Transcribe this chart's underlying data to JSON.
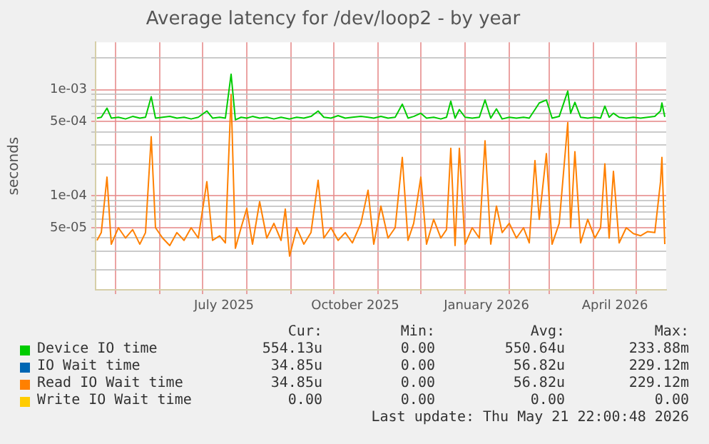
{
  "chart_data": {
    "type": "line",
    "title": "Average latency for /dev/loop2 - by year",
    "ylabel": "seconds",
    "log": "y",
    "grid": true,
    "legend": "bottom",
    "marker": "none",
    "x": [
      "2025-04-18",
      "2025-04-21",
      "2025-04-25",
      "2025-04-28",
      "2025-05-03",
      "2025-05-08",
      "2025-05-13",
      "2025-05-18",
      "2025-05-22",
      "2025-05-26",
      "2025-05-29",
      "2025-06-03",
      "2025-06-08",
      "2025-06-13",
      "2025-06-18",
      "2025-06-23",
      "2025-06-28",
      "2025-07-04",
      "2025-07-08",
      "2025-07-13",
      "2025-07-17",
      "2025-07-21",
      "2025-07-24",
      "2025-07-28",
      "2025-08-01",
      "2025-08-05",
      "2025-08-10",
      "2025-08-15",
      "2025-08-20",
      "2025-08-25",
      "2025-08-28",
      "2025-08-31",
      "2025-09-05",
      "2025-09-10",
      "2025-09-15",
      "2025-09-20",
      "2025-09-24",
      "2025-09-29",
      "2025-10-04",
      "2025-10-09",
      "2025-10-14",
      "2025-10-20",
      "2025-10-25",
      "2025-10-29",
      "2025-11-03",
      "2025-11-08",
      "2025-11-13",
      "2025-11-18",
      "2025-11-22",
      "2025-11-26",
      "2025-12-01",
      "2025-12-05",
      "2025-12-10",
      "2025-12-15",
      "2025-12-19",
      "2025-12-22",
      "2025-12-25",
      "2025-12-28",
      "2026-01-01",
      "2026-01-06",
      "2026-01-11",
      "2026-01-15",
      "2026-01-19",
      "2026-01-23",
      "2026-01-27",
      "2026-02-01",
      "2026-02-06",
      "2026-02-11",
      "2026-02-15",
      "2026-02-19",
      "2026-02-22",
      "2026-02-27",
      "2026-03-03",
      "2026-03-08",
      "2026-03-14",
      "2026-03-16",
      "2026-03-19",
      "2026-03-23",
      "2026-03-28",
      "2026-04-02",
      "2026-04-06",
      "2026-04-09",
      "2026-04-12",
      "2026-04-15",
      "2026-04-19",
      "2026-04-24",
      "2026-04-29",
      "2026-05-04",
      "2026-05-09",
      "2026-05-14",
      "2026-05-18",
      "2026-05-19",
      "2026-05-21"
    ],
    "series": [
      {
        "name": "Device IO time",
        "color": "#00cc00",
        "values": [
          0.00054,
          0.00055,
          0.00067,
          0.00054,
          0.00055,
          0.00053,
          0.00056,
          0.00054,
          0.00055,
          0.00086,
          0.00054,
          0.00055,
          0.00056,
          0.00054,
          0.00055,
          0.00053,
          0.00055,
          0.00063,
          0.00054,
          0.00055,
          0.00054,
          0.0014,
          0.00052,
          0.00055,
          0.00054,
          0.00056,
          0.00054,
          0.00055,
          0.00053,
          0.00055,
          0.00054,
          0.00053,
          0.00055,
          0.00054,
          0.00056,
          0.00063,
          0.00055,
          0.00054,
          0.00057,
          0.00054,
          0.00055,
          0.00056,
          0.00055,
          0.00054,
          0.00056,
          0.00054,
          0.00055,
          0.00073,
          0.00054,
          0.00056,
          0.0006,
          0.00054,
          0.00055,
          0.00053,
          0.00055,
          0.00078,
          0.00054,
          0.00065,
          0.00055,
          0.00054,
          0.00055,
          0.0008,
          0.00054,
          0.00066,
          0.00053,
          0.00055,
          0.00054,
          0.00055,
          0.00054,
          0.00065,
          0.00075,
          0.0008,
          0.00054,
          0.00056,
          0.00097,
          0.0006,
          0.00076,
          0.00055,
          0.00054,
          0.00055,
          0.00054,
          0.0007,
          0.00055,
          0.0006,
          0.00055,
          0.00054,
          0.00055,
          0.00054,
          0.00055,
          0.00056,
          0.00063,
          0.00075,
          0.000554
        ]
      },
      {
        "name": "IO Wait time",
        "color": "#0066b3",
        "values": [
          null,
          null,
          null,
          null,
          null,
          null,
          null,
          null,
          null,
          null,
          null,
          null,
          null,
          null,
          null,
          null,
          null,
          null,
          null,
          null,
          null,
          null,
          null,
          null,
          null,
          null,
          null,
          null,
          null,
          null,
          null,
          null,
          null,
          null,
          null,
          null,
          null,
          null,
          null,
          null,
          null,
          null,
          null,
          null,
          null,
          null,
          null,
          null,
          null,
          null,
          null,
          null,
          null,
          null,
          null,
          null,
          null,
          null,
          null,
          null,
          null,
          null,
          null,
          null,
          null,
          null,
          null,
          null,
          null,
          null,
          null,
          null,
          null,
          null,
          null,
          null,
          null,
          null,
          null,
          null,
          null,
          null,
          null,
          null,
          null,
          null,
          null,
          null,
          null,
          null,
          null,
          null,
          null
        ]
      },
      {
        "name": "Read IO Wait time",
        "color": "#ff8000",
        "values": [
          3.8e-05,
          4.5e-05,
          0.00015,
          3.5e-05,
          5e-05,
          4e-05,
          4.8e-05,
          3.5e-05,
          4.5e-05,
          0.00036,
          5e-05,
          4e-05,
          3.4e-05,
          4.5e-05,
          3.8e-05,
          5e-05,
          4e-05,
          0.000136,
          3.8e-05,
          4.2e-05,
          3.6e-05,
          0.0009,
          3.2e-05,
          5e-05,
          7.6e-05,
          3.5e-05,
          8.8e-05,
          4e-05,
          5.5e-05,
          3.8e-05,
          7.5e-05,
          2.7e-05,
          5e-05,
          3.5e-05,
          4.5e-05,
          0.00014,
          4e-05,
          5e-05,
          3.8e-05,
          4.5e-05,
          3.6e-05,
          5.5e-05,
          0.000113,
          3.5e-05,
          8e-05,
          4e-05,
          5e-05,
          0.00023,
          3.8e-05,
          5.5e-05,
          0.00015,
          3.5e-05,
          6e-05,
          4e-05,
          4.8e-05,
          0.00028,
          3.4e-05,
          0.00028,
          3.5e-05,
          5e-05,
          4e-05,
          0.00033,
          3.5e-05,
          8e-05,
          4.5e-05,
          5.5e-05,
          4e-05,
          5e-05,
          3.6e-05,
          0.000215,
          6e-05,
          0.00025,
          3.5e-05,
          5.5e-05,
          0.00049,
          5e-05,
          0.00026,
          3.6e-05,
          6e-05,
          4e-05,
          5e-05,
          0.0002,
          4e-05,
          0.00017,
          3.6e-05,
          5e-05,
          4.4e-05,
          4.2e-05,
          4.6e-05,
          4.5e-05,
          0.000135,
          0.00023,
          3.5e-05
        ]
      },
      {
        "name": "Write IO Wait time",
        "color": "#ffcc00",
        "values": [
          null,
          null,
          null,
          null,
          null,
          null,
          null,
          null,
          null,
          null,
          null,
          null,
          null,
          null,
          null,
          null,
          null,
          null,
          null,
          null,
          null,
          null,
          null,
          null,
          null,
          null,
          null,
          null,
          null,
          null,
          null,
          null,
          null,
          null,
          null,
          null,
          null,
          null,
          null,
          null,
          null,
          null,
          null,
          null,
          null,
          null,
          null,
          null,
          null,
          null,
          null,
          null,
          null,
          null,
          null,
          null,
          null,
          null,
          null,
          null,
          null,
          null,
          null,
          null,
          null,
          null,
          null,
          null,
          null,
          null,
          null,
          null,
          null,
          null,
          null,
          null,
          null,
          null,
          null,
          null,
          null,
          null,
          null,
          null,
          null,
          null,
          null,
          null,
          null,
          null,
          null,
          null,
          null
        ]
      }
    ],
    "xlim": [
      "2025-04-17",
      "2026-05-22"
    ],
    "xticks": [
      {
        "value": "2025-05-01",
        "label": null
      },
      {
        "value": "2025-06-01",
        "label": null
      },
      {
        "value": "2025-07-01",
        "label": null
      },
      {
        "value": "2025-07-16",
        "label": "July 2025"
      },
      {
        "value": "2025-08-01",
        "label": null
      },
      {
        "value": "2025-09-01",
        "label": null
      },
      {
        "value": "2025-10-01",
        "label": null
      },
      {
        "value": "2025-10-16",
        "label": "October 2025"
      },
      {
        "value": "2025-11-01",
        "label": null
      },
      {
        "value": "2025-12-01",
        "label": null
      },
      {
        "value": "2026-01-01",
        "label": null
      },
      {
        "value": "2026-01-16",
        "label": "January 2026"
      },
      {
        "value": "2026-02-01",
        "label": null
      },
      {
        "value": "2026-03-01",
        "label": null
      },
      {
        "value": "2026-04-01",
        "label": null
      },
      {
        "value": "2026-04-16",
        "label": "April 2026"
      },
      {
        "value": "2026-05-01",
        "label": null
      }
    ],
    "ylim": [
      1.3e-05,
      0.0028
    ],
    "yticks": [
      {
        "value": 2e-05,
        "label": null
      },
      {
        "value": 3e-05,
        "label": null
      },
      {
        "value": 4e-05,
        "label": null
      },
      {
        "value": 5e-05,
        "label": "5e-05"
      },
      {
        "value": 6e-05,
        "label": null
      },
      {
        "value": 7e-05,
        "label": null
      },
      {
        "value": 8e-05,
        "label": null
      },
      {
        "value": 9e-05,
        "label": null
      },
      {
        "value": 0.0001,
        "label": "1e-04"
      },
      {
        "value": 0.0002,
        "label": null
      },
      {
        "value": 0.0003,
        "label": null
      },
      {
        "value": 0.0004,
        "label": null
      },
      {
        "value": 0.0005,
        "label": "5e-04"
      },
      {
        "value": 0.0006,
        "label": null
      },
      {
        "value": 0.0007,
        "label": null
      },
      {
        "value": 0.0008,
        "label": null
      },
      {
        "value": 0.0009,
        "label": null
      },
      {
        "value": 0.001,
        "label": "1e-03"
      },
      {
        "value": 0.002,
        "label": null
      }
    ],
    "annotations": [
      "Cur:",
      "Min:",
      "Avg:",
      "Max:",
      "554.13u",
      "0.00",
      "550.64u",
      "233.88m",
      "34.85u",
      "0.00",
      "56.82u",
      "229.12m",
      "34.85u",
      "0.00",
      "56.82u",
      "229.12m",
      "0.00",
      "0.00",
      "0.00",
      "0.00",
      "Last update: Thu May 21 22:00:48 2026"
    ]
  }
}
